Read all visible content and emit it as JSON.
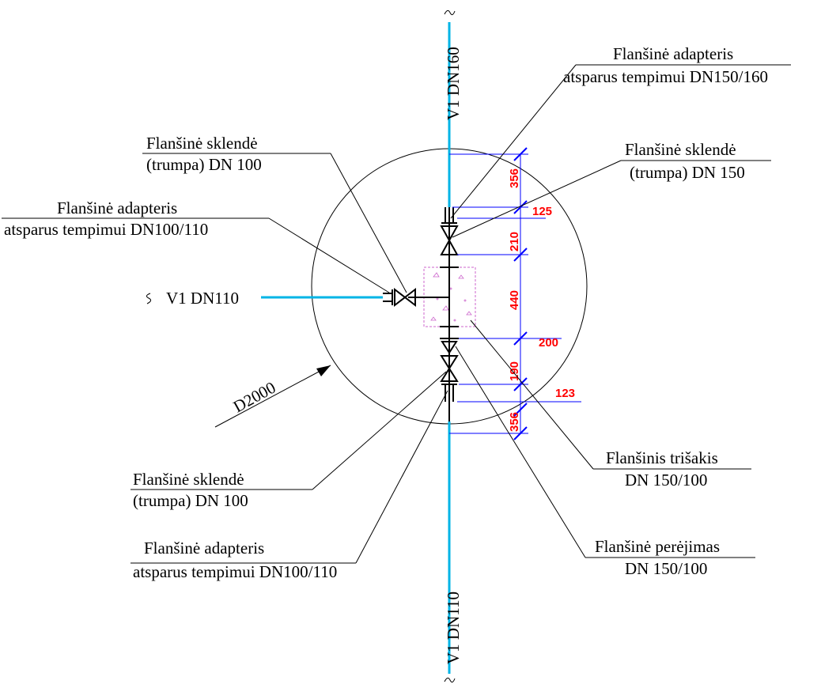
{
  "labels": {
    "pipe_top": "V1 DN160",
    "pipe_bottom": "V1 DN110",
    "pipe_left": "V1 DN110",
    "diameter": "D2000",
    "top_right_adapter_l1": "Flanšinė  adapteris",
    "top_right_adapter_l2": "atsparus tempimui DN150/160",
    "top_right_valve_l1": "Flanšinė  sklendė",
    "top_right_valve_l2": "(trumpa) DN 150",
    "top_left_valve_l1": "Flanšinė  sklendė",
    "top_left_valve_l2": "(trumpa) DN 100",
    "left_adapter_l1": "Flanšinė  adapteris",
    "left_adapter_l2": "atsparus tempimui DN100/110",
    "tee_l1": "Flanšinis trišakis",
    "tee_l2": "DN 150/100",
    "bottom_left_valve_l1": "Flanšinė  sklendė",
    "bottom_left_valve_l2": "(trumpa) DN 100",
    "bottom_left_adapter_l1": "Flanšinė  adapteris",
    "bottom_left_adapter_l2": "atsparus tempimui DN100/110",
    "reducer_l1": "Flanšinė  perėjimas",
    "reducer_l2": "DN 150/100"
  },
  "dimensions": {
    "d356_top": "356",
    "d125": "125",
    "d210": "210",
    "d440": "440",
    "d200": "200",
    "d190": "190",
    "d123": "123",
    "d356_bottom": "356"
  },
  "colors": {
    "pipe": "#00b4e6",
    "dimension_text": "#ff0000",
    "dimension_line": "#0000ff",
    "thrust_block": "#cc66cc"
  }
}
